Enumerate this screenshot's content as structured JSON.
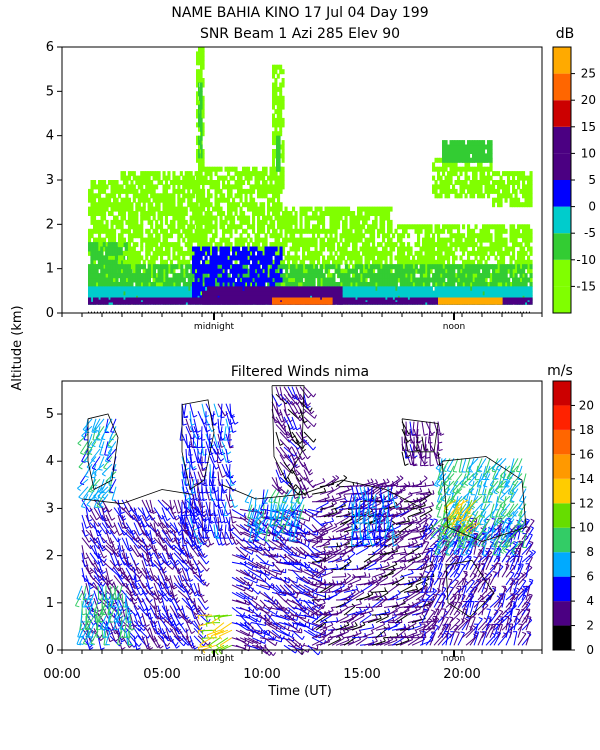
{
  "title_line1": "NAME BAHIA KINO   17 Jul 04 Day 199",
  "title_line2": "SNR Beam 1 Azi 285 Elev 90",
  "shared_ylabel": "Altitude (km)",
  "shared_xlabel": "Time (UT)",
  "chart_data": [
    {
      "type": "heatmap",
      "panel": "top",
      "title": "SNR Beam 1 Azi 285 Elev 90",
      "ylabel": "Altitude (km)",
      "ylim": [
        0,
        6
      ],
      "yticks": [
        0,
        1,
        2,
        3,
        4,
        5,
        6
      ],
      "xlim": [
        0,
        24
      ],
      "x_annotations": [
        {
          "x": 7.6,
          "label": "midnight"
        },
        {
          "x": 19.6,
          "label": "noon"
        }
      ],
      "colorbar": {
        "unit": "dB",
        "ticks": [
          -15,
          -10,
          -5,
          0,
          5,
          10,
          15,
          20,
          25
        ],
        "colors": [
          "#80ff00",
          "#33cc33",
          "#00cccc",
          "#0000ff",
          "#4b0082",
          "#cc0000",
          "#ff6600",
          "#ffaa00"
        ]
      },
      "regions": [
        {
          "x0": 1.3,
          "x1": 2.8,
          "y0": 0.2,
          "y1": 3.0,
          "level": -13
        },
        {
          "x0": 1.3,
          "x1": 3.5,
          "y0": 0.2,
          "y1": 1.6,
          "level": -8
        },
        {
          "x0": 2.8,
          "x1": 7.0,
          "y0": 0.2,
          "y1": 3.2,
          "level": -13
        },
        {
          "x0": 6.7,
          "x1": 7.1,
          "y0": 0.3,
          "y1": 6.0,
          "level": -12
        },
        {
          "x0": 6.8,
          "x1": 7.0,
          "y0": 3.5,
          "y1": 5.2,
          "level": -6
        },
        {
          "x0": 7.0,
          "x1": 11.0,
          "y0": 0.2,
          "y1": 3.3,
          "level": -13
        },
        {
          "x0": 10.5,
          "x1": 11.1,
          "y0": 2.8,
          "y1": 5.6,
          "level": -12
        },
        {
          "x0": 10.7,
          "x1": 10.9,
          "y0": 3.2,
          "y1": 4.0,
          "level": -6
        },
        {
          "x0": 11.0,
          "x1": 16.5,
          "y0": 0.2,
          "y1": 2.4,
          "level": -13
        },
        {
          "x0": 16.5,
          "x1": 23.5,
          "y0": 0.2,
          "y1": 2.0,
          "level": -13
        },
        {
          "x0": 18.5,
          "x1": 21.5,
          "y0": 2.6,
          "y1": 3.5,
          "level": -13
        },
        {
          "x0": 19.0,
          "x1": 21.5,
          "y0": 3.4,
          "y1": 3.9,
          "level": -8
        },
        {
          "x0": 21.5,
          "x1": 23.5,
          "y0": 2.4,
          "y1": 3.2,
          "level": -13
        },
        {
          "x0": 1.3,
          "x1": 23.5,
          "y0": 0.2,
          "y1": 1.1,
          "level": -8
        },
        {
          "x0": 1.3,
          "x1": 23.5,
          "y0": 0.2,
          "y1": 0.6,
          "level": -3
        },
        {
          "x0": 6.5,
          "x1": 11.0,
          "y0": 0.3,
          "y1": 1.5,
          "level": 1
        },
        {
          "x0": 1.3,
          "x1": 23.5,
          "y0": 0.2,
          "y1": 0.35,
          "level": 7
        },
        {
          "x0": 7.0,
          "x1": 14.0,
          "y0": 0.2,
          "y1": 0.6,
          "level": 7
        },
        {
          "x0": 10.5,
          "x1": 13.5,
          "y0": 0.2,
          "y1": 0.35,
          "level": 17
        },
        {
          "x0": 18.8,
          "x1": 22.0,
          "y0": 0.2,
          "y1": 0.35,
          "level": 20
        }
      ]
    },
    {
      "type": "scatter",
      "panel": "bottom",
      "title": "Filtered Winds nima",
      "ylim": [
        0,
        5.7
      ],
      "yticks": [
        0,
        1,
        2,
        3,
        4,
        5
      ],
      "xlim": [
        0,
        24
      ],
      "xticks": [
        "00:00",
        "05:00",
        "10:00",
        "15:00",
        "20:00"
      ],
      "xtick_values": [
        0,
        5,
        10,
        15,
        20
      ],
      "xlabel": "Time (UT)",
      "x_annotations": [
        {
          "x": 7.6,
          "label": "midnight"
        },
        {
          "x": 19.6,
          "label": "noon"
        }
      ],
      "colorbar": {
        "unit": "m/s",
        "ticks": [
          0,
          2,
          4,
          6,
          8,
          10,
          12,
          14,
          16,
          18,
          20
        ],
        "colors": [
          "#000000",
          "#4b0082",
          "#0000ff",
          "#00aaff",
          "#33cc66",
          "#66dd00",
          "#ffcc00",
          "#ff9900",
          "#ff6600",
          "#ff2200",
          "#cc0000"
        ]
      },
      "wind_regions": [
        {
          "x0": 1.0,
          "x1": 7.0,
          "y0": 0.3,
          "y1": 3.3,
          "speed": 4,
          "dir": 300
        },
        {
          "x0": 1.0,
          "x1": 3.5,
          "y0": 0.4,
          "y1": 1.5,
          "speed": 8,
          "dir": 260
        },
        {
          "x0": 1.3,
          "x1": 2.8,
          "y0": 3.3,
          "y1": 5.0,
          "speed": 7,
          "dir": 240
        },
        {
          "x0": 6.0,
          "x1": 8.5,
          "y0": 2.5,
          "y1": 5.3,
          "speed": 5,
          "dir": 280
        },
        {
          "x0": 7.5,
          "x1": 8.5,
          "y0": 0.1,
          "y1": 0.8,
          "speed": 12,
          "dir": 200
        },
        {
          "x0": 8.5,
          "x1": 12.5,
          "y0": 0.1,
          "y1": 3.0,
          "speed": 4,
          "dir": 330
        },
        {
          "x0": 9.5,
          "x1": 12.2,
          "y0": 2.6,
          "y1": 3.5,
          "speed": 7,
          "dir": 250
        },
        {
          "x0": 10.5,
          "x1": 12.2,
          "y0": 3.5,
          "y1": 5.6,
          "speed": 3,
          "dir": 300
        },
        {
          "x0": 12.5,
          "x1": 18.0,
          "y0": 0.1,
          "y1": 3.5,
          "speed": 3,
          "dir": 20
        },
        {
          "x0": 14.5,
          "x1": 16.5,
          "y0": 2.5,
          "y1": 3.5,
          "speed": 6,
          "dir": 270
        },
        {
          "x0": 18.0,
          "x1": 23.3,
          "y0": 0.1,
          "y1": 2.5,
          "speed": 4,
          "dir": 60
        },
        {
          "x0": 19.0,
          "x1": 23.3,
          "y0": 2.3,
          "y1": 4.1,
          "speed": 8,
          "dir": 240
        },
        {
          "x0": 19.5,
          "x1": 21.0,
          "y0": 2.7,
          "y1": 3.3,
          "speed": 12,
          "dir": 230
        },
        {
          "x0": 17.0,
          "x1": 18.8,
          "y0": 4.2,
          "y1": 4.9,
          "speed": 3,
          "dir": 280
        }
      ]
    }
  ]
}
